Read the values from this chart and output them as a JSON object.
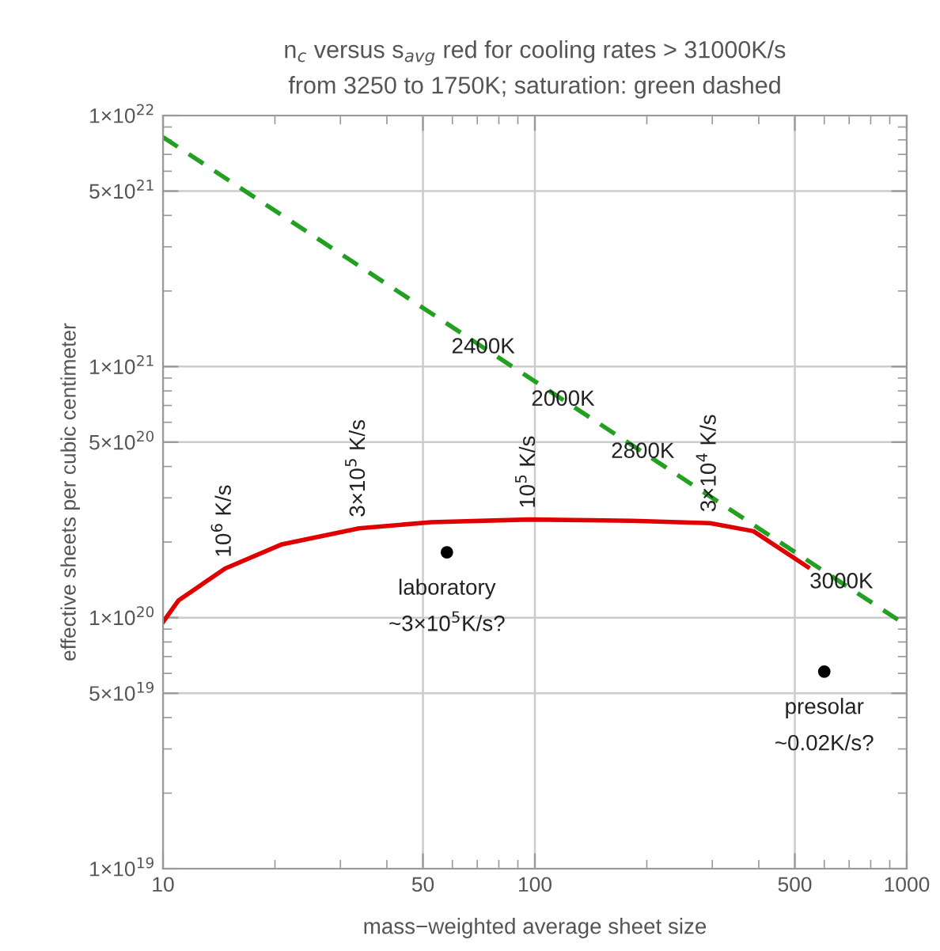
{
  "chart_data": {
    "type": "line",
    "title": "n$_{c}$ versus s$_{avg}$ red for cooling rates > 31000K/s\nfrom 3250 to 1750K; saturation: green dashed",
    "xlabel": "mass−weighted average sheet size",
    "ylabel": "effective sheets per cubic centimeter",
    "log": "xy",
    "xlim": [
      10,
      1000
    ],
    "xticks": [
      10,
      50,
      100,
      500,
      1000
    ],
    "ylim": [
      1e+19,
      1e+22
    ],
    "yticks": [
      {
        "value": 1e+19,
        "label": "1×10$^{19}$"
      },
      {
        "value": 5e+19,
        "label": "5×10$^{19}$"
      },
      {
        "value": 1e+20,
        "label": "1×10$^{20}$"
      },
      {
        "value": 5e+20,
        "label": "5×10$^{20}$"
      },
      {
        "value": 1e+21,
        "label": "1×10$^{21}$"
      },
      {
        "value": 5e+21,
        "label": "5×10$^{21}$"
      },
      {
        "value": 1e+22,
        "label": "1×10$^{22}$"
      }
    ],
    "grid": true,
    "series": [
      {
        "color": "#e00000",
        "line_style": "solid",
        "x": [
          10,
          11,
          14.7,
          20.9,
          33.7,
          52.7,
          96.6,
          183,
          296,
          387,
          542
        ],
        "values": [
          9.6e+19,
          1.17e+20,
          1.57e+20,
          1.96e+20,
          2.27e+20,
          2.4e+20,
          2.46e+20,
          2.43e+20,
          2.38e+20,
          2.21e+20,
          1.59e+20
        ]
      },
      {
        "color": "#22a022",
        "line_style": "dashed",
        "x": [
          10,
          1000
        ],
        "values": [
          8.2e+21,
          9.3e+19
        ]
      },
      {
        "type": "scatter",
        "color": "#000000",
        "marker": "circle",
        "x": [
          58,
          600
        ],
        "values": [
          1.82e+20,
          6.1e+19
        ]
      }
    ],
    "annotations": [
      {
        "text": "10$^{6}$ K/s",
        "x": 14.7,
        "y": 1.57e+20
      },
      {
        "text": "3×10$^{5}$ K/s",
        "x": 33.7,
        "y": 2.27e+20
      },
      {
        "text": "10$^{5}$ K/s",
        "x": 96.6,
        "y": 2.46e+20
      },
      {
        "text": "3×10$^{4}$ K/s",
        "x": 296,
        "y": 2.38e+20
      },
      {
        "text": "2400K",
        "x": 72.6,
        "y": 1.19e+21
      },
      {
        "text": "2000K",
        "x": 119,
        "y": 7.36e+20
      },
      {
        "text": "2800K",
        "x": 195,
        "y": 4.56e+20
      },
      {
        "text": "3000K",
        "x": 667,
        "y": 1.38e+20
      },
      {
        "text": "laboratory\n~3×10$^{5}$K/s?",
        "x": 58,
        "y": 1.82e+20
      },
      {
        "text": "presolar\n~0.02K/s?",
        "x": 600,
        "y": 6.1e+19
      }
    ]
  }
}
